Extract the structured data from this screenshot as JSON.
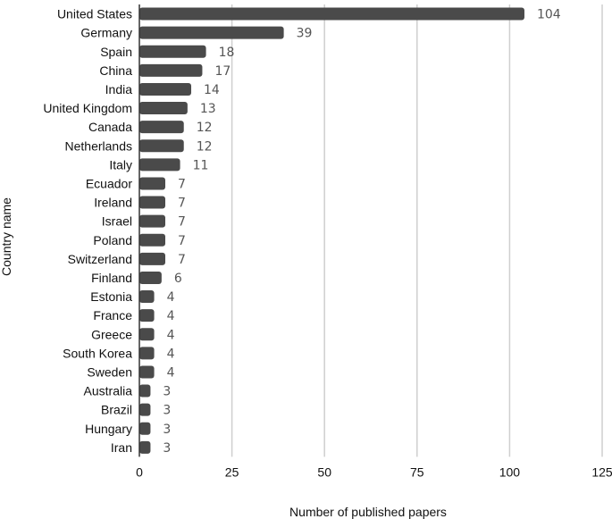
{
  "chart_data": {
    "type": "bar",
    "orientation": "horizontal",
    "categories": [
      "United States",
      "Germany",
      "Spain",
      "China",
      "India",
      "United Kingdom",
      "Canada",
      "Netherlands",
      "Italy",
      "Ecuador",
      "Ireland",
      "Israel",
      "Poland",
      "Switzerland",
      "Finland",
      "Estonia",
      "France",
      "Greece",
      "South Korea",
      "Sweden",
      "Australia",
      "Brazil",
      "Hungary",
      "Iran"
    ],
    "values": [
      104,
      39,
      18,
      17,
      14,
      13,
      12,
      12,
      11,
      7,
      7,
      7,
      7,
      7,
      6,
      4,
      4,
      4,
      4,
      4,
      3,
      3,
      3,
      3
    ],
    "xlabel": "Number of published papers",
    "ylabel": "Country name",
    "xlim": [
      0,
      125
    ],
    "xticks": [
      0,
      25,
      50,
      75,
      100,
      125
    ],
    "grid": true,
    "bar_color": "#4a4a4a",
    "grid_color": "#cfcfcf"
  }
}
